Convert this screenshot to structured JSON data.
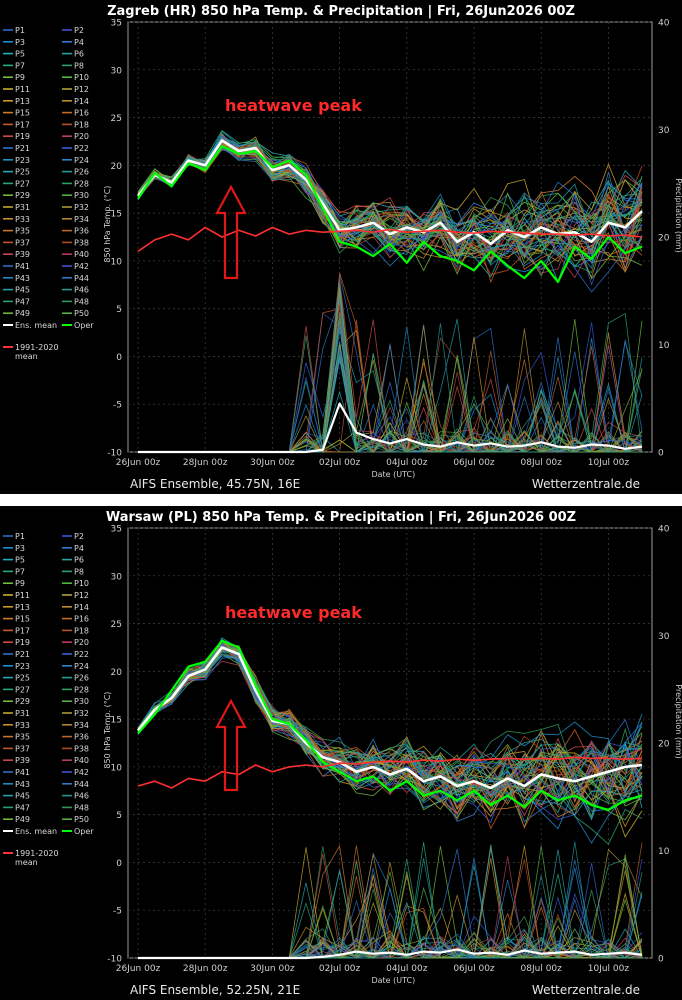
{
  "chart_data": [
    {
      "type": "line",
      "title": "Zagreb  (HR)  850 hPa Temp. & Precipitation | Fri, 26Jun2026 00Z",
      "model_label": "AIFS Ensemble, 45.75N, 16E",
      "site_label": "Wetterzentrale.de",
      "xlabel": "Date (UTC)",
      "ylabel": "850 hPa Temp. (°C)",
      "y2label": "Precipitation (mm)",
      "x_ticks": [
        "26Jun 00z",
        "28Jun 00z",
        "30Jun 00z",
        "02Jul 00z",
        "04Jul 00z",
        "06Jul 00z",
        "08Jul 00z",
        "10Jul 00z"
      ],
      "ylim": [
        -10,
        35
      ],
      "y_ticks": [
        35,
        30,
        25,
        20,
        15,
        10,
        5,
        0,
        -5,
        -10
      ],
      "y2lim": [
        0,
        40
      ],
      "y2_ticks": [
        40,
        30,
        20,
        10,
        0
      ],
      "x_days": [
        0,
        0.5,
        1,
        1.5,
        2,
        2.5,
        3,
        3.5,
        4,
        4.5,
        5,
        5.5,
        6,
        6.5,
        7,
        7.5,
        8,
        8.5,
        9,
        9.5,
        10,
        10.5,
        11,
        11.5,
        12,
        12.5,
        13,
        13.5,
        14,
        14.5,
        15
      ],
      "annotation": "heatwave peak",
      "series": [
        {
          "name": "Ens. mean",
          "color": "#ffffff",
          "values": [
            16.8,
            19,
            18.2,
            20.5,
            20,
            22.6,
            21.5,
            21.8,
            19.5,
            20,
            18.5,
            16,
            13.2,
            13.5,
            14,
            12.8,
            13.5,
            13,
            14,
            12,
            13,
            11.8,
            13.2,
            12.5,
            13.5,
            12.8,
            13,
            12,
            14,
            13.5,
            15.2
          ]
        },
        {
          "name": "Oper",
          "color": "#00ff00",
          "values": [
            16.5,
            19.2,
            17.8,
            20.2,
            19.5,
            22,
            21.2,
            21.5,
            19.8,
            20.5,
            19,
            15.5,
            12,
            11.5,
            10.5,
            11.8,
            9.8,
            12,
            10.5,
            10,
            9,
            11,
            9.5,
            8.2,
            10,
            7.8,
            11.5,
            10.2,
            12.5,
            10.8,
            11.5
          ]
        },
        {
          "name": "1991-2020 mean",
          "color": "#ff3030",
          "values": [
            11,
            12.2,
            12.8,
            12.2,
            13.5,
            12.5,
            13.2,
            12.6,
            13.5,
            12.8,
            13.2,
            13,
            13.1,
            13.2,
            13,
            13.3,
            13,
            13.1,
            13.2,
            13,
            12.9,
            13.1,
            13,
            12.9,
            12.8,
            12.8,
            12.7,
            12.8,
            12.6,
            12.7,
            12.5
          ]
        },
        {
          "name": "Ens. mean precipitation (mm)",
          "color": "#ffffff",
          "values": [
            0,
            0,
            0,
            0,
            0,
            0,
            0,
            0,
            0,
            0,
            0,
            0.2,
            4.5,
            1.8,
            1.2,
            0.8,
            1.2,
            0.7,
            0.5,
            0.9,
            0.6,
            0.8,
            0.5,
            0.6,
            0.9,
            0.5,
            0.4,
            0.7,
            0.6,
            0.3,
            0.5
          ]
        }
      ],
      "legend": {
        "placement": "left",
        "members": [
          {
            "label": "P1",
            "color": "#2e6fd1"
          },
          {
            "label": "P2",
            "color": "#3a55d8"
          },
          {
            "label": "P3",
            "color": "#1b8ed6"
          },
          {
            "label": "P4",
            "color": "#2f7ad4"
          },
          {
            "label": "P5",
            "color": "#1fb0c0"
          },
          {
            "label": "P6",
            "color": "#25a3a8"
          },
          {
            "label": "P7",
            "color": "#22b07a"
          },
          {
            "label": "P8",
            "color": "#29a36a"
          },
          {
            "label": "P9",
            "color": "#6fbf3a"
          },
          {
            "label": "P10",
            "color": "#4fb840"
          },
          {
            "label": "P11",
            "color": "#c8b02a"
          },
          {
            "label": "P12",
            "color": "#b5a030"
          },
          {
            "label": "P13",
            "color": "#c9952e"
          },
          {
            "label": "P14",
            "color": "#b88f2c"
          },
          {
            "label": "P15",
            "color": "#d07a2a"
          },
          {
            "label": "P16",
            "color": "#c46b26"
          },
          {
            "label": "P17",
            "color": "#c85a26"
          },
          {
            "label": "P18",
            "color": "#b94f24"
          },
          {
            "label": "P19",
            "color": "#d04a4a"
          },
          {
            "label": "P20",
            "color": "#c03d5a"
          },
          {
            "label": "P21",
            "color": "#2a74d0"
          },
          {
            "label": "P22",
            "color": "#365fd4"
          },
          {
            "label": "P23",
            "color": "#1e92cf"
          },
          {
            "label": "P24",
            "color": "#2c84c8"
          },
          {
            "label": "P25",
            "color": "#23a9b6"
          },
          {
            "label": "P26",
            "color": "#219c9c"
          },
          {
            "label": "P27",
            "color": "#26a877"
          },
          {
            "label": "P28",
            "color": "#2e9e62"
          },
          {
            "label": "P29",
            "color": "#72b83c"
          },
          {
            "label": "P30",
            "color": "#54b244"
          },
          {
            "label": "P31",
            "color": "#c4a82c"
          },
          {
            "label": "P32",
            "color": "#ad9832"
          },
          {
            "label": "P33",
            "color": "#c48e30"
          },
          {
            "label": "P34",
            "color": "#b0862e"
          },
          {
            "label": "P35",
            "color": "#c9742c"
          },
          {
            "label": "P36",
            "color": "#bb6428"
          },
          {
            "label": "P37",
            "color": "#c25628"
          },
          {
            "label": "P38",
            "color": "#b04a26"
          },
          {
            "label": "P39",
            "color": "#c8464c"
          },
          {
            "label": "P40",
            "color": "#b63a5c"
          },
          {
            "label": "P41",
            "color": "#3268c8"
          },
          {
            "label": "P42",
            "color": "#3f52cc"
          },
          {
            "label": "P43",
            "color": "#2088c6"
          },
          {
            "label": "P44",
            "color": "#3079c0"
          },
          {
            "label": "P45",
            "color": "#27a0ac"
          },
          {
            "label": "P46",
            "color": "#239494"
          },
          {
            "label": "P47",
            "color": "#2aa070"
          },
          {
            "label": "P48",
            "color": "#30965c"
          },
          {
            "label": "P49",
            "color": "#76b040"
          },
          {
            "label": "P50",
            "color": "#58aa48"
          }
        ],
        "extra": [
          {
            "label": "Ens. mean",
            "color": "#ffffff"
          },
          {
            "label": "Oper",
            "color": "#00ff00"
          },
          {
            "label": "1991-2020",
            "label2": "mean",
            "color": "#ff3030"
          }
        ]
      }
    },
    {
      "type": "line",
      "title": "Warsaw  (PL)  850 hPa Temp. & Precipitation | Fri, 26Jun2026 00Z",
      "model_label": "AIFS Ensemble, 52.25N, 21E",
      "site_label": "Wetterzentrale.de",
      "xlabel": "Date (UTC)",
      "ylabel": "850 hPa Temp. (°C)",
      "y2label": "Precipitation (mm)",
      "x_ticks": [
        "26Jun 00z",
        "28Jun 00z",
        "30Jun 00z",
        "02Jul 00z",
        "04Jul 00z",
        "06Jul 00z",
        "08Jul 00z",
        "10Jul 00z"
      ],
      "ylim": [
        -10,
        35
      ],
      "y_ticks": [
        35,
        30,
        25,
        20,
        15,
        10,
        5,
        0,
        -5,
        -10
      ],
      "y2lim": [
        0,
        40
      ],
      "y2_ticks": [
        40,
        30,
        20,
        10,
        0
      ],
      "x_days": [
        0,
        0.5,
        1,
        1.5,
        2,
        2.5,
        3,
        3.5,
        4,
        4.5,
        5,
        5.5,
        6,
        6.5,
        7,
        7.5,
        8,
        8.5,
        9,
        9.5,
        10,
        10.5,
        11,
        11.5,
        12,
        12.5,
        13,
        13.5,
        14,
        14.5,
        15
      ],
      "annotation": "heatwave peak",
      "series": [
        {
          "name": "Ens. mean",
          "color": "#ffffff",
          "values": [
            13.8,
            16,
            17.2,
            19.5,
            20.2,
            22.5,
            21.8,
            18,
            14.8,
            14.5,
            12.5,
            11,
            10.5,
            9.5,
            10,
            9.2,
            9.8,
            8.5,
            9,
            8,
            8.5,
            7.8,
            8.8,
            8,
            9.2,
            8.8,
            8.5,
            9,
            9.5,
            10,
            10.2
          ]
        },
        {
          "name": "Oper",
          "color": "#00ff00",
          "values": [
            13.5,
            15.5,
            18,
            20.5,
            21,
            23.2,
            22.5,
            18.5,
            15,
            14.5,
            12.8,
            10.5,
            9.5,
            8.5,
            9,
            7.5,
            8.5,
            7,
            7.5,
            6.5,
            7.5,
            6,
            7,
            5.8,
            7.5,
            6.5,
            7,
            6,
            5.5,
            6.5,
            7
          ]
        },
        {
          "name": "1991-2020 mean",
          "color": "#ff3030",
          "values": [
            8,
            8.5,
            7.8,
            8.8,
            8.5,
            9.5,
            9.2,
            10.2,
            9.5,
            10,
            10.2,
            10,
            10.4,
            10.3,
            10.5,
            10.6,
            10.5,
            10.7,
            10.6,
            10.8,
            10.7,
            10.8,
            10.9,
            10.8,
            10.9,
            10.8,
            11,
            10.9,
            10.9,
            10.8,
            10.9
          ]
        },
        {
          "name": "Ens. mean precipitation (mm)",
          "color": "#ffffff",
          "values": [
            0,
            0,
            0,
            0,
            0,
            0,
            0,
            0,
            0,
            0,
            0,
            0.1,
            0.3,
            0.6,
            0.4,
            0.5,
            0.3,
            0.6,
            0.5,
            0.8,
            0.4,
            0.5,
            0.3,
            0.7,
            0.4,
            0.5,
            0.6,
            0.3,
            0.4,
            0.5,
            0.3
          ]
        }
      ],
      "legend": {
        "placement": "left",
        "members": [
          {
            "label": "P1",
            "color": "#2e6fd1"
          },
          {
            "label": "P2",
            "color": "#3a55d8"
          },
          {
            "label": "P3",
            "color": "#1b8ed6"
          },
          {
            "label": "P4",
            "color": "#2f7ad4"
          },
          {
            "label": "P5",
            "color": "#1fb0c0"
          },
          {
            "label": "P6",
            "color": "#25a3a8"
          },
          {
            "label": "P7",
            "color": "#22b07a"
          },
          {
            "label": "P8",
            "color": "#29a36a"
          },
          {
            "label": "P9",
            "color": "#6fbf3a"
          },
          {
            "label": "P10",
            "color": "#4fb840"
          },
          {
            "label": "P11",
            "color": "#c8b02a"
          },
          {
            "label": "P12",
            "color": "#b5a030"
          },
          {
            "label": "P13",
            "color": "#c9952e"
          },
          {
            "label": "P14",
            "color": "#b88f2c"
          },
          {
            "label": "P15",
            "color": "#d07a2a"
          },
          {
            "label": "P16",
            "color": "#c46b26"
          },
          {
            "label": "P17",
            "color": "#c85a26"
          },
          {
            "label": "P18",
            "color": "#b94f24"
          },
          {
            "label": "P19",
            "color": "#d04a4a"
          },
          {
            "label": "P20",
            "color": "#c03d5a"
          },
          {
            "label": "P21",
            "color": "#2a74d0"
          },
          {
            "label": "P22",
            "color": "#365fd4"
          },
          {
            "label": "P23",
            "color": "#1e92cf"
          },
          {
            "label": "P24",
            "color": "#2c84c8"
          },
          {
            "label": "P25",
            "color": "#23a9b6"
          },
          {
            "label": "P26",
            "color": "#219c9c"
          },
          {
            "label": "P27",
            "color": "#26a877"
          },
          {
            "label": "P28",
            "color": "#2e9e62"
          },
          {
            "label": "P29",
            "color": "#72b83c"
          },
          {
            "label": "P30",
            "color": "#54b244"
          },
          {
            "label": "P31",
            "color": "#c4a82c"
          },
          {
            "label": "P32",
            "color": "#ad9832"
          },
          {
            "label": "P33",
            "color": "#c48e30"
          },
          {
            "label": "P34",
            "color": "#b0862e"
          },
          {
            "label": "P35",
            "color": "#c9742c"
          },
          {
            "label": "P36",
            "color": "#bb6428"
          },
          {
            "label": "P37",
            "color": "#c25628"
          },
          {
            "label": "P38",
            "color": "#b04a26"
          },
          {
            "label": "P39",
            "color": "#c8464c"
          },
          {
            "label": "P40",
            "color": "#b63a5c"
          },
          {
            "label": "P41",
            "color": "#3268c8"
          },
          {
            "label": "P42",
            "color": "#3f52cc"
          },
          {
            "label": "P43",
            "color": "#2088c6"
          },
          {
            "label": "P44",
            "color": "#3079c0"
          },
          {
            "label": "P45",
            "color": "#27a0ac"
          },
          {
            "label": "P46",
            "color": "#239494"
          },
          {
            "label": "P47",
            "color": "#2aa070"
          },
          {
            "label": "P48",
            "color": "#30965c"
          },
          {
            "label": "P49",
            "color": "#76b040"
          },
          {
            "label": "P50",
            "color": "#58aa48"
          }
        ],
        "extra": [
          {
            "label": "Ens. mean",
            "color": "#ffffff"
          },
          {
            "label": "Oper",
            "color": "#00ff00"
          },
          {
            "label": "1991-2020",
            "label2": "mean",
            "color": "#ff3030"
          }
        ]
      }
    }
  ]
}
